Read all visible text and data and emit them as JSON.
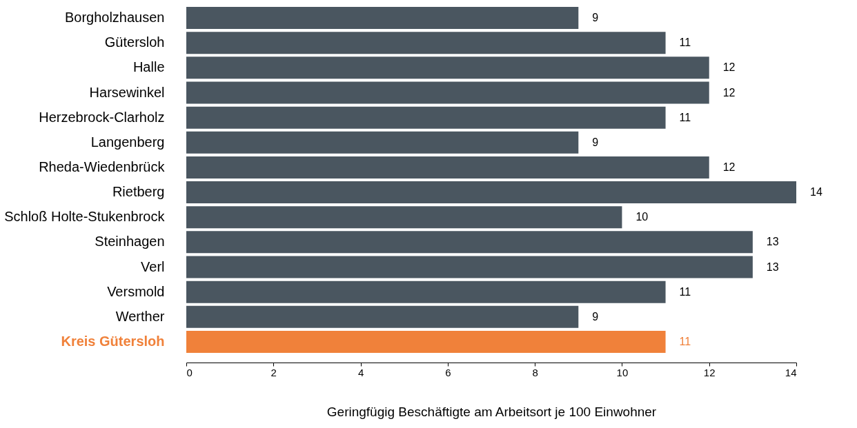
{
  "chart_data": {
    "type": "bar",
    "orientation": "horizontal",
    "categories": [
      "Borgholzhausen",
      "Gütersloh",
      "Halle",
      "Harsewinkel",
      "Herzebrock-Clarholz",
      "Langenberg",
      "Rheda-Wiedenbrück",
      "Rietberg",
      "Schloß Holte-Stukenbrock",
      "Steinhagen",
      "Verl",
      "Versmold",
      "Werther",
      "Kreis Gütersloh"
    ],
    "values": [
      9,
      11,
      12,
      12,
      11,
      9,
      12,
      14,
      10,
      13,
      13,
      11,
      9,
      11
    ],
    "colors": [
      "#4a5660",
      "#4a5660",
      "#4a5660",
      "#4a5660",
      "#4a5660",
      "#4a5660",
      "#4a5660",
      "#4a5660",
      "#4a5660",
      "#4a5660",
      "#4a5660",
      "#4a5660",
      "#4a5660",
      "#f0813a"
    ],
    "xlabel": "Geringfügig Beschäftigte am Arbeitsort je 100 Einwohner",
    "xlim": [
      0,
      14
    ],
    "xticks": [
      0,
      2,
      4,
      6,
      8,
      10,
      12,
      14
    ],
    "data_labels": true,
    "grid": false,
    "legend": false
  }
}
